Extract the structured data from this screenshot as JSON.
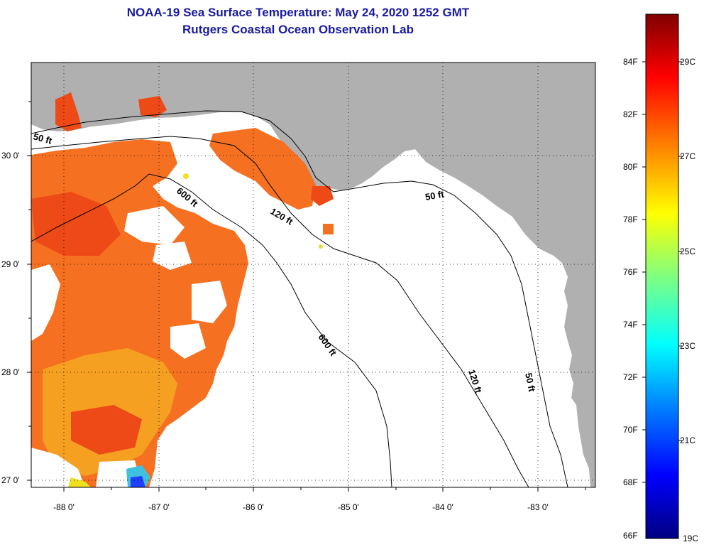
{
  "title_line1": "NOAA-19 Sea Surface Temperature:  May 24, 2020 1252 GMT",
  "title_line2": "Rutgers Coastal Ocean Observation Lab",
  "lon_labels": [
    "-88 0'",
    "-87 0'",
    "-86 0'",
    "-85 0'",
    "-84 0'",
    "-83 0'"
  ],
  "lat_labels": [
    "30 0'",
    "29 0'",
    "28 0'",
    "27 0'"
  ],
  "contour_labels": {
    "c50_west": "50 ft",
    "c600_north": "600 ft",
    "c120_north": "120 ft",
    "c50_east": "50 ft",
    "c600_south": "600 ft",
    "c120_south": "120 ft",
    "c50_south": "50 ft"
  },
  "colorbar": {
    "fahrenheit": [
      "84F",
      "82F",
      "80F",
      "78F",
      "76F",
      "74F",
      "72F",
      "70F",
      "68F",
      "66F"
    ],
    "celsius": [
      "29C",
      "27C",
      "25C",
      "23C",
      "21C",
      "19C"
    ],
    "colors": [
      "#000080",
      "#0000ff",
      "#0080ff",
      "#00ffff",
      "#80ff80",
      "#ffff00",
      "#ff8000",
      "#ff0000",
      "#800000"
    ]
  },
  "colors": {
    "land": "#b0b0b0",
    "water_nodata": "#ffffff",
    "sst_main": "#f57020",
    "sst_warm": "#ee4a18",
    "sst_cool": "#f5a020",
    "title": "#1a1aa0"
  }
}
